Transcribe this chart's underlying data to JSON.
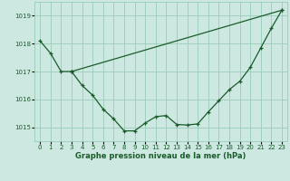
{
  "xlabel": "Graphe pression niveau de la mer (hPa)",
  "ylim": [
    1014.5,
    1019.5
  ],
  "xlim": [
    -0.5,
    23.5
  ],
  "yticks": [
    1015,
    1016,
    1017,
    1018,
    1019
  ],
  "xticks": [
    0,
    1,
    2,
    3,
    4,
    5,
    6,
    7,
    8,
    9,
    10,
    11,
    12,
    13,
    14,
    15,
    16,
    17,
    18,
    19,
    20,
    21,
    22,
    23
  ],
  "bg_color": "#cce8e0",
  "grid_color": "#99ccbb",
  "line_color": "#1a5c2a",
  "line1": {
    "x": [
      0,
      1,
      2,
      3
    ],
    "y": [
      1018.1,
      1017.65,
      1017.0,
      1017.0
    ]
  },
  "line2": {
    "x": [
      3,
      4,
      5,
      6,
      7,
      8,
      9,
      10,
      11,
      12,
      13,
      14,
      15,
      16,
      17,
      18,
      19,
      20,
      21,
      22,
      23
    ],
    "y": [
      1017.0,
      1016.5,
      1016.15,
      1015.65,
      1015.3,
      1014.87,
      1014.87,
      1015.15,
      1015.38,
      1015.42,
      1015.1,
      1015.08,
      1015.12,
      1015.55,
      1015.95,
      1016.35,
      1016.65,
      1017.15,
      1017.85,
      1018.55,
      1019.2
    ]
  },
  "line3": {
    "x": [
      3,
      23
    ],
    "y": [
      1017.0,
      1019.2
    ]
  }
}
